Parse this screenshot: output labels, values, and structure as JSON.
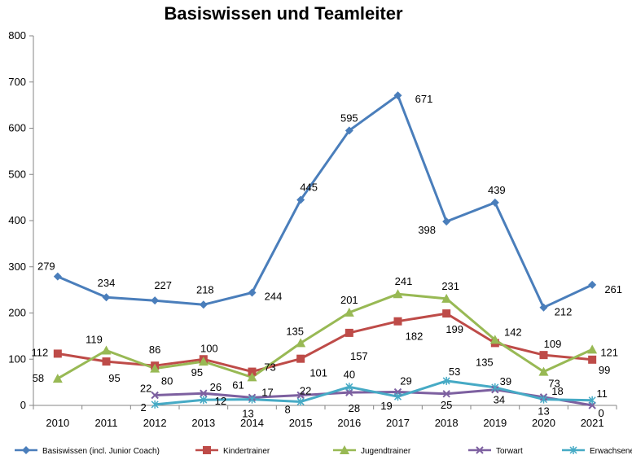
{
  "chart_data": {
    "type": "line",
    "title": "Basiswissen und Teamleiter",
    "xlabel": "",
    "ylabel": "",
    "categories": [
      "2010",
      "2011",
      "2012",
      "2013",
      "2014",
      "2015",
      "2016",
      "2017",
      "2018",
      "2019",
      "2020",
      "2021"
    ],
    "ylim": [
      0,
      800
    ],
    "yticks": [
      0,
      100,
      200,
      300,
      400,
      500,
      600,
      700,
      800
    ],
    "grid": "none",
    "legend_position": "bottom",
    "series": [
      {
        "name": "Basiswissen (incl. Junior Coach)",
        "color": "#4a7ebb",
        "marker": "diamond",
        "values": [
          279,
          234,
          227,
          218,
          244,
          445,
          595,
          671,
          398,
          439,
          212,
          261
        ]
      },
      {
        "name": "Kindertrainer",
        "color": "#be4b48",
        "marker": "square",
        "values": [
          112,
          95,
          86,
          100,
          73,
          101,
          157,
          182,
          199,
          135,
          109,
          99
        ]
      },
      {
        "name": "Jugendtrainer",
        "color": "#98b954",
        "marker": "triangle",
        "values": [
          58,
          119,
          80,
          95,
          61,
          135,
          201,
          241,
          231,
          142,
          73,
          121
        ]
      },
      {
        "name": "Torwart",
        "color": "#7d60a0",
        "marker": "x",
        "values": [
          null,
          null,
          22,
          26,
          17,
          22,
          28,
          29,
          25,
          34,
          18,
          0
        ]
      },
      {
        "name": "Erwachsene",
        "color": "#46aac5",
        "marker": "star",
        "values": [
          null,
          null,
          2,
          12,
          13,
          8,
          40,
          19,
          53,
          39,
          13,
          11
        ]
      }
    ]
  }
}
